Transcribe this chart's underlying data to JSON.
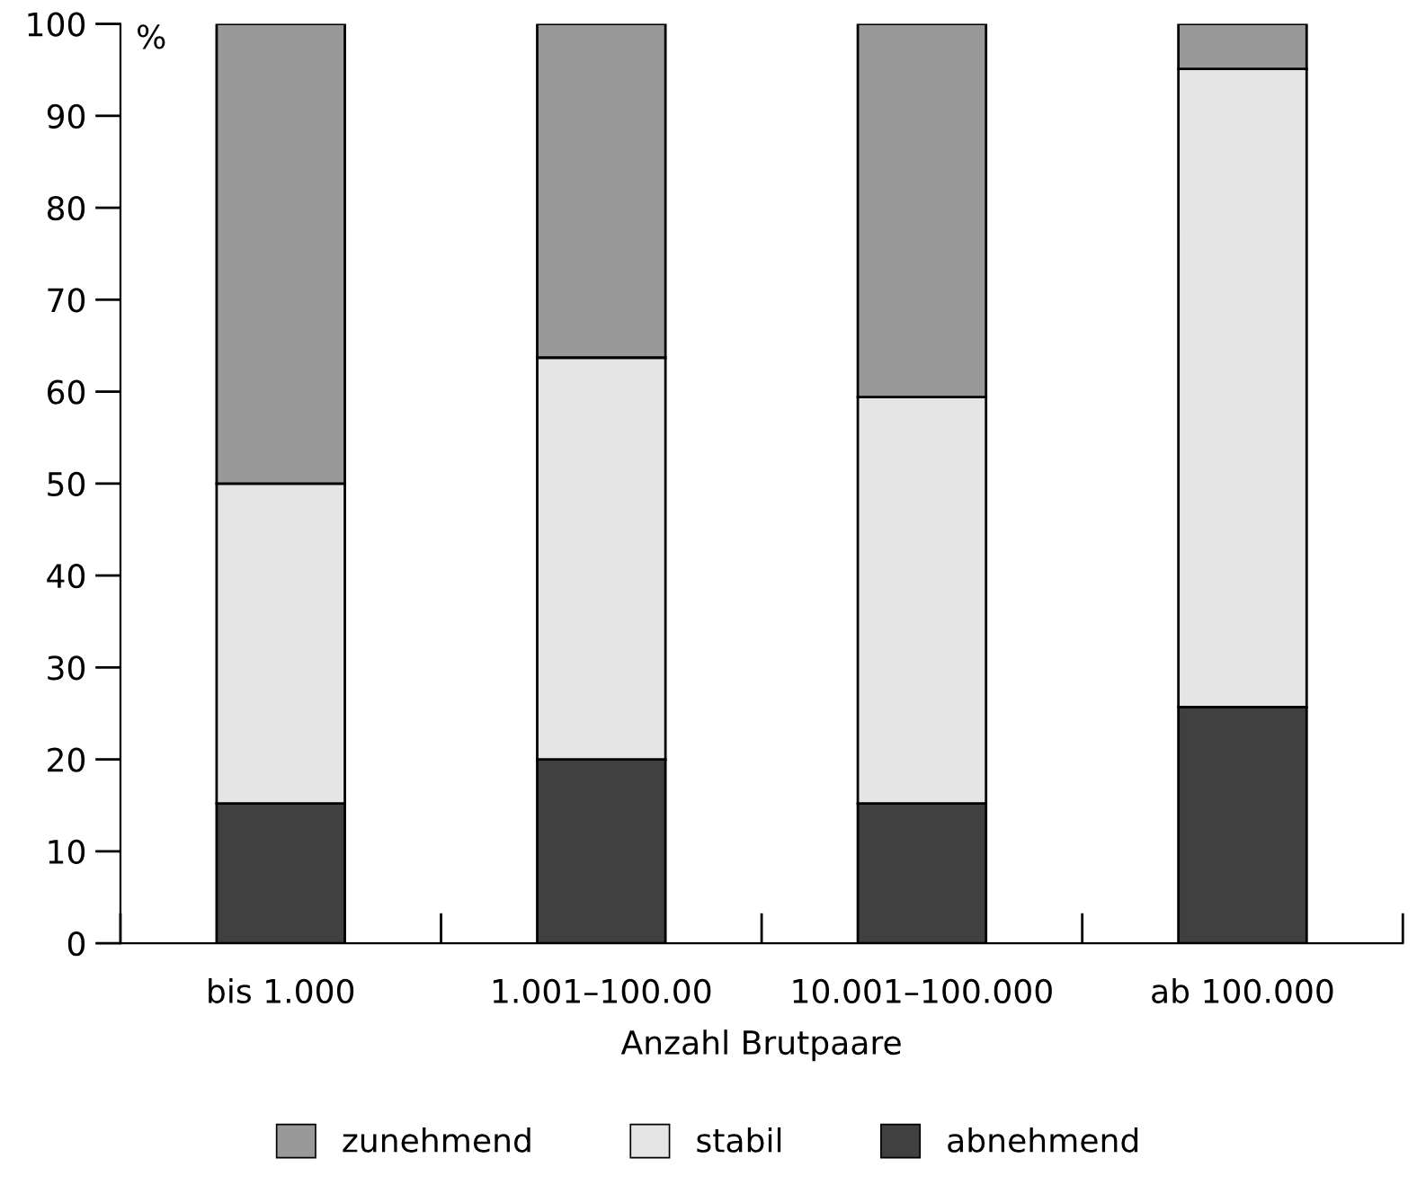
{
  "chart_data": {
    "type": "bar",
    "stacked": true,
    "xlabel": "Anzahl Brutpaare",
    "ylabel": "%",
    "categories": [
      "bis 1.000",
      "1.001–100.00",
      "10.001–100.000",
      "ab 100.000"
    ],
    "series": [
      {
        "name": "abnehmend",
        "color": "#404040",
        "values": [
          15.2,
          20,
          15.2,
          25.7
        ]
      },
      {
        "name": "stabil",
        "color": "#e5e5e5",
        "values": [
          34.8,
          43.7,
          44.2,
          69.4
        ]
      },
      {
        "name": "zunehmend",
        "color": "#999999",
        "values": [
          50,
          36.3,
          40.6,
          4.9
        ]
      }
    ],
    "ylim": [
      0,
      100
    ],
    "yticks": [
      0,
      10,
      20,
      30,
      40,
      50,
      60,
      70,
      80,
      90,
      100
    ],
    "grid": false,
    "legend": "bottom"
  }
}
